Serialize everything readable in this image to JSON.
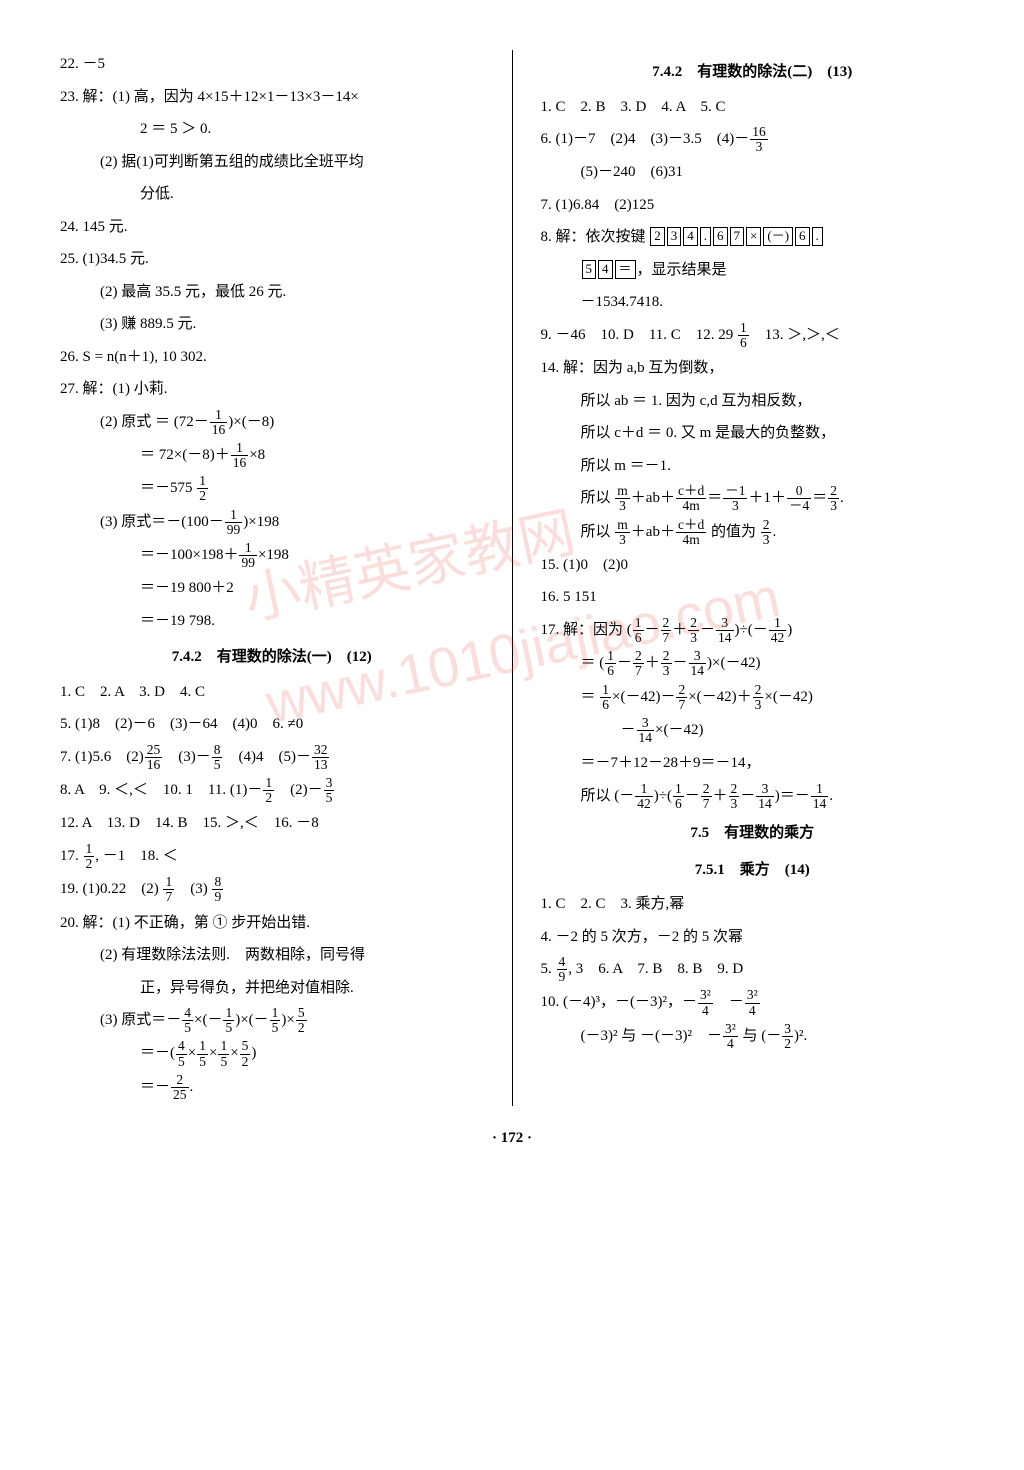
{
  "page_number_label": "· 172 ·",
  "watermark_text1": "小精英家教网",
  "watermark_text2": "www.1010jiajiao.com",
  "left": {
    "l22": "22. －5",
    "l23a": "23. 解：(1) 高，因为 4×15＋12×1－13×3－14×",
    "l23b": "2 ＝ 5 ＞ 0.",
    "l23c": "(2) 据(1)可判断第五组的成绩比全班平均",
    "l23d": "分低.",
    "l24": "24. 145 元.",
    "l25a": "25. (1)34.5 元.",
    "l25b": "(2) 最高 35.5 元，最低 26 元.",
    "l25c": "(3) 赚 889.5 元.",
    "l26": "26. S = n(n＋1), 10 302.",
    "l27a": "27. 解：(1) 小莉.",
    "l27b_pre": "(2) 原式 ＝ (72－",
    "l27b_f1n": "1",
    "l27b_f1d": "16",
    "l27b_post": ")×(－8)",
    "l27c_pre": "＝ 72×(－8)＋",
    "l27c_f1n": "1",
    "l27c_f1d": "16",
    "l27c_post": "×8",
    "l27d_pre": "＝－575 ",
    "l27d_f1n": "1",
    "l27d_f1d": "2",
    "l27e_pre": "(3) 原式＝－(100－",
    "l27e_f1n": "1",
    "l27e_f1d": "99",
    "l27e_post": ")×198",
    "l27f_pre": "＝－100×198＋",
    "l27f_f1n": "1",
    "l27f_f1d": "99",
    "l27f_post": "×198",
    "l27g": "＝－19 800＋2",
    "l27h": "＝－19 798.",
    "sec742a": "7.4.2　有理数的除法(一)　(12)",
    "r1": "1. C　2. A　3. D　4. C",
    "r5_pre": "5. (1)8　(2)－6　(3)－64　(4)0　6. ≠0",
    "r7_pre": "7. (1)5.6　(2)",
    "r7_f1n": "25",
    "r7_f1d": "16",
    "r7_mid1": "　(3)－",
    "r7_f2n": "8",
    "r7_f2d": "5",
    "r7_mid2": "　(4)4　(5)－",
    "r7_f3n": "32",
    "r7_f3d": "13",
    "r8_pre": "8. A　9. ＜,＜　10. 1　11. (1)－",
    "r8_f1n": "1",
    "r8_f1d": "2",
    "r8_mid": "　(2)－",
    "r8_f2n": "3",
    "r8_f2d": "5",
    "r12": "12. A　13. D　14. B　15. ＞,＜　16. －8",
    "r17_pre": "17. ",
    "r17_f1n": "1",
    "r17_f1d": "2",
    "r17_post": ", －1　18. ＜",
    "r19_pre": "19. (1)0.22　(2) ",
    "r19_f1n": "1",
    "r19_f1d": "7",
    "r19_mid": "　(3) ",
    "r19_f2n": "8",
    "r19_f2d": "9",
    "r20a": "20. 解：(1) 不正确，第 ① 步开始出错.",
    "r20b": "(2) 有理数除法法则.　两数相除，同号得",
    "r20b2": "正，异号得负，并把绝对值相除.",
    "r20c_pre": "(3) 原式＝－",
    "r20c_f1n": "4",
    "r20c_f1d": "5",
    "r20c_m1": "×(－",
    "r20c_f2n": "1",
    "r20c_f2d": "5",
    "r20c_m2": ")×(－",
    "r20c_f3n": "1",
    "r20c_f3d": "5",
    "r20c_m3": ")×",
    "r20c_f4n": "5",
    "r20c_f4d": "2",
    "r20d_pre": "＝－(",
    "r20d_f1n": "4",
    "r20d_f1d": "5",
    "r20d_m1": "×",
    "r20d_f2n": "1",
    "r20d_f2d": "5",
    "r20d_m2": "×",
    "r20d_f3n": "1",
    "r20d_f3d": "5",
    "r20d_m3": "×",
    "r20d_f4n": "5",
    "r20d_f4d": "2",
    "r20d_post": ")",
    "r20e_pre": "＝－",
    "r20e_f1n": "2",
    "r20e_f1d": "25",
    "r20e_post": "."
  },
  "right": {
    "sec742b": "7.4.2　有理数的除法(二)　(13)",
    "q1": "1. C　2. B　3. D　4. A　5. C",
    "q6_pre": "6. (1)－7　(2)4　(3)－3.5　(4)－",
    "q6_f1n": "16",
    "q6_f1d": "3",
    "q6b": "(5)－240　(6)31",
    "q7": "7. (1)6.84　(2)125",
    "q8a": "8. 解：依次按键",
    "k": [
      "2",
      "3",
      "4",
      ".",
      "6",
      "7",
      "×",
      "(－)",
      "6",
      "."
    ],
    "q8b_keys": [
      "5",
      "4",
      "＝"
    ],
    "q8b_post": "，显示结果是",
    "q8c": "－1534.7418.",
    "q9_pre": "9. －46　10. D　11. C　12. 29 ",
    "q9_f1n": "1",
    "q9_f1d": "6",
    "q9_post": "　13. ＞,＞,＜",
    "q14a": "14. 解：因为 a,b 互为倒数，",
    "q14b": "所以 ab ＝ 1. 因为 c,d 互为相反数，",
    "q14c": "所以 c＋d ＝ 0. 又 m 是最大的负整数，",
    "q14d": "所以 m ＝－1.",
    "q14e_pre": "所以 ",
    "q14e_f1n": "m",
    "q14e_f1d": "3",
    "q14e_m1": "＋ab＋",
    "q14e_f2n": "c＋d",
    "q14e_f2d": "4m",
    "q14e_m2": "＝",
    "q14e_f3n": "－1",
    "q14e_f3d": "3",
    "q14e_m3": "＋1＋",
    "q14e_f4n": "0",
    "q14e_f4d": "－4",
    "q14e_m4": "＝",
    "q14e_f5n": "2",
    "q14e_f5d": "3",
    "q14e_post": ".",
    "q14f_pre": "所以 ",
    "q14f_f1n": "m",
    "q14f_f1d": "3",
    "q14f_m1": "＋ab＋",
    "q14f_f2n": "c＋d",
    "q14f_f2d": "4m",
    "q14f_m2": " 的值为 ",
    "q14f_f3n": "2",
    "q14f_f3d": "3",
    "q14f_post": ".",
    "q15": "15. (1)0　(2)0",
    "q16": "16. 5 151",
    "q17a_pre": "17. 解：因为 (",
    "q17a_f1n": "1",
    "q17a_f1d": "6",
    "q17a_m1": "－",
    "q17a_f2n": "2",
    "q17a_f2d": "7",
    "q17a_m2": "＋",
    "q17a_f3n": "2",
    "q17a_f3d": "3",
    "q17a_m3": "－",
    "q17a_f4n": "3",
    "q17a_f4d": "14",
    "q17a_m4": ")÷(－",
    "q17a_f5n": "1",
    "q17a_f5d": "42",
    "q17a_post": ")",
    "q17b_pre": "＝ (",
    "q17b_f1n": "1",
    "q17b_f1d": "6",
    "q17b_m1": "－",
    "q17b_f2n": "2",
    "q17b_f2d": "7",
    "q17b_m2": "＋",
    "q17b_f3n": "2",
    "q17b_f3d": "3",
    "q17b_m3": "－",
    "q17b_f4n": "3",
    "q17b_f4d": "14",
    "q17b_post": ")×(－42)",
    "q17c_pre": "＝ ",
    "q17c_f1n": "1",
    "q17c_f1d": "6",
    "q17c_m1": "×(－42)－",
    "q17c_f2n": "2",
    "q17c_f2d": "7",
    "q17c_m2": "×(－42)＋",
    "q17c_f3n": "2",
    "q17c_f3d": "3",
    "q17c_post": "×(－42)",
    "q17d_pre": "－",
    "q17d_f1n": "3",
    "q17d_f1d": "14",
    "q17d_post": "×(－42)",
    "q17e": "＝－7＋12－28＋9＝－14，",
    "q17f_pre": "所以 (－",
    "q17f_f1n": "1",
    "q17f_f1d": "42",
    "q17f_m1": ")÷(",
    "q17f_f2n": "1",
    "q17f_f2d": "6",
    "q17f_m2": "－",
    "q17f_f3n": "2",
    "q17f_f3d": "7",
    "q17f_m3": "＋",
    "q17f_f4n": "2",
    "q17f_f4d": "3",
    "q17f_m4": "－",
    "q17f_f5n": "3",
    "q17f_f5d": "14",
    "q17f_m5": ")＝－",
    "q17f_f6n": "1",
    "q17f_f6d": "14",
    "q17f_post": ".",
    "sec75": "7.5　有理数的乘方",
    "sec751": "7.5.1　乘方　(14)",
    "s1": "1. C　2. C　3. 乘方,幂",
    "s4": "4. －2 的 5 次方，－2 的 5 次幂",
    "s5_pre": "5. ",
    "s5_f1n": "4",
    "s5_f1d": "9",
    "s5_post": ", 3　6. A　7. B　8. B　9. D",
    "s10_pre": "10. (－4)³，－(－3)²，－",
    "s10_f1n": "3²",
    "s10_f1d": "4",
    "s10_m": "　－",
    "s10_f2n": "3²",
    "s10_f2d": "4",
    "s11_pre": "(－3)² 与 －(－3)²　－",
    "s11_f1n": "3²",
    "s11_f1d": "4",
    "s11_m": " 与 (－",
    "s11_f2n": "3",
    "s11_f2d": "2",
    "s11_post": ")²."
  }
}
